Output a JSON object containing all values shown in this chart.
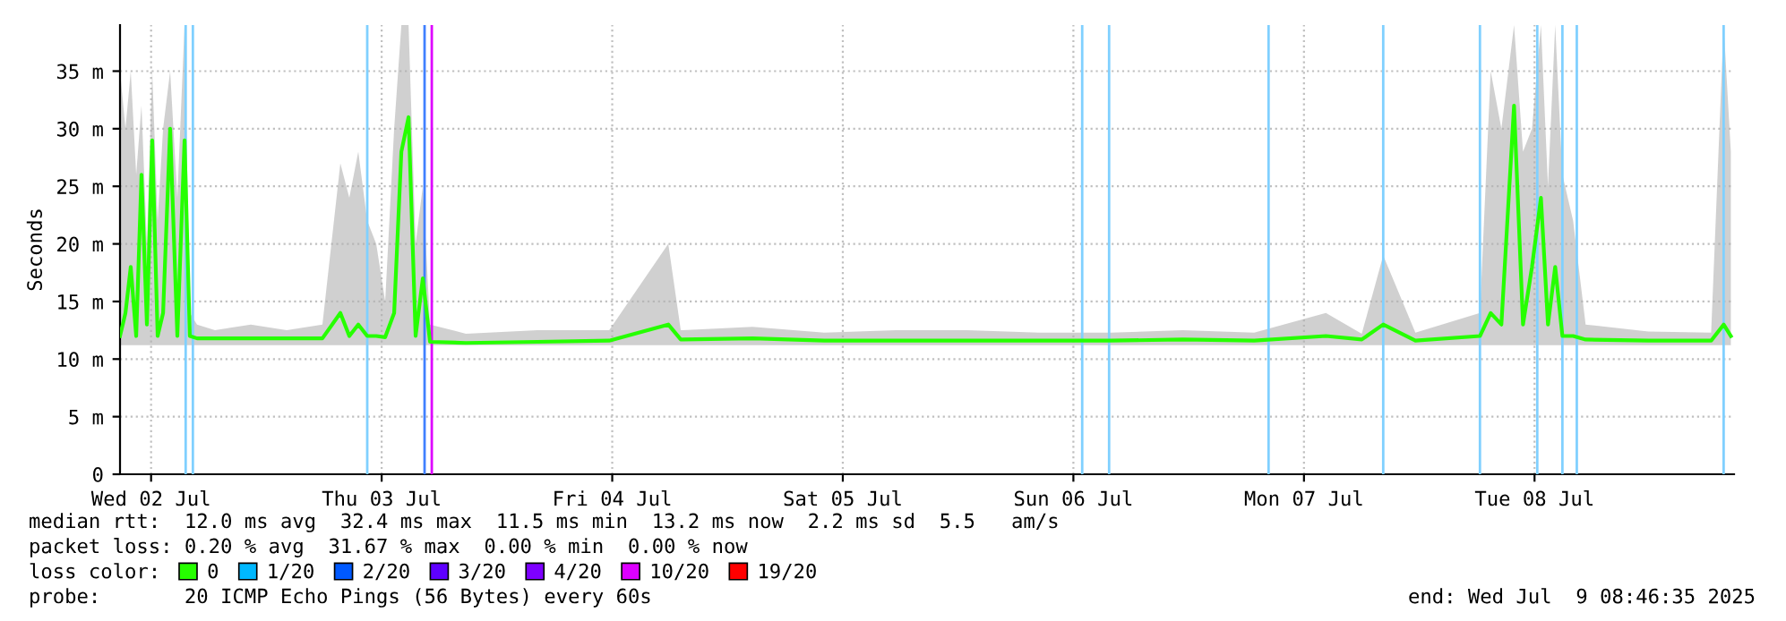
{
  "chart_data": {
    "type": "line",
    "ylabel": "Seconds",
    "legend_title": "loss color:",
    "legend": "bottom left",
    "grid": true,
    "marker": "none",
    "line_style": "solid",
    "x": [
      "2025-07-02T08:46",
      "2025-07-02T09:20",
      "2025-07-02T09:53",
      "2025-07-02T10:27",
      "2025-07-02T11:00",
      "2025-07-02T11:34",
      "2025-07-02T12:07",
      "2025-07-02T12:41",
      "2025-07-02T13:15",
      "2025-07-02T13:59",
      "2025-07-02T14:44",
      "2025-07-02T15:29",
      "2025-07-02T16:02",
      "2025-07-02T16:47",
      "2025-07-02T18:39",
      "2025-07-02T22:23",
      "2025-07-03T02:07",
      "2025-07-03T05:50",
      "2025-07-03T07:42",
      "2025-07-03T08:38",
      "2025-07-03T09:34",
      "2025-07-03T10:30",
      "2025-07-03T11:26",
      "2025-07-03T12:22",
      "2025-07-03T13:18",
      "2025-07-03T14:03",
      "2025-07-03T14:48",
      "2025-07-03T15:32",
      "2025-07-03T16:17",
      "2025-07-03T17:02",
      "2025-07-03T20:46",
      "2025-07-04T04:13",
      "2025-07-04T11:41",
      "2025-07-04T17:50",
      "2025-07-04T19:08",
      "2025-07-05T02:36",
      "2025-07-05T10:04",
      "2025-07-05T17:31",
      "2025-07-06T00:59",
      "2025-07-06T08:26",
      "2025-07-06T15:54",
      "2025-07-06T23:22",
      "2025-07-07T06:49",
      "2025-07-07T14:17",
      "2025-07-07T18:01",
      "2025-07-07T20:15",
      "2025-07-07T23:36",
      "2025-07-08T06:19",
      "2025-07-08T07:26",
      "2025-07-08T08:33",
      "2025-07-08T09:52",
      "2025-07-08T10:48",
      "2025-07-08T11:44",
      "2025-07-08T12:40",
      "2025-07-08T13:24",
      "2025-07-08T14:09",
      "2025-07-08T14:54",
      "2025-07-08T16:01",
      "2025-07-08T17:19",
      "2025-07-08T23:51",
      "2025-07-09T06:23",
      "2025-07-09T07:41",
      "2025-07-09T08:26"
    ],
    "series": [
      {
        "name": "0",
        "color": "#26ff00",
        "values": [
          12,
          14,
          18,
          12,
          26,
          13,
          29,
          12,
          14,
          30,
          12,
          29,
          12,
          11.8,
          11.8,
          11.8,
          11.8,
          11.8,
          14,
          12,
          13,
          12,
          12,
          11.9,
          14,
          28,
          31,
          12,
          17,
          11.5,
          11.4,
          11.5,
          11.6,
          13,
          11.7,
          11.8,
          11.6,
          11.6,
          11.6,
          11.6,
          11.6,
          11.7,
          11.6,
          12,
          11.7,
          13,
          11.6,
          12,
          14,
          13,
          32,
          13,
          18,
          24,
          13,
          18,
          12,
          12,
          11.7,
          11.6,
          11.6,
          13,
          12
        ],
        "lower": [
          11.2,
          11.2,
          11.2,
          11.2,
          11.2,
          11.2,
          11.2,
          11.2,
          11.2,
          11.2,
          11.2,
          11.2,
          11.2,
          11.2,
          11.2,
          11.2,
          11.2,
          11.2,
          11.2,
          11.2,
          11.2,
          11.2,
          11.2,
          11.2,
          11.2,
          11.2,
          11.2,
          11.2,
          11.2,
          11.2,
          11.2,
          11.2,
          11.2,
          11.2,
          11.2,
          11.2,
          11.2,
          11.2,
          11.2,
          11.2,
          11.2,
          11.2,
          11.2,
          11.2,
          11.2,
          11.2,
          11.2,
          11.2,
          11.2,
          11.2,
          11.2,
          11.2,
          11.2,
          11.2,
          11.2,
          11.2,
          11.2,
          11.2,
          11.2,
          11.2,
          11.2,
          11.2,
          11.2
        ],
        "upper": [
          35,
          30,
          35,
          26,
          32,
          20,
          35,
          22,
          30,
          35,
          24,
          39,
          14,
          13,
          12.5,
          13,
          12.5,
          13,
          27,
          24,
          28,
          22,
          20,
          15,
          30,
          39,
          39,
          20,
          25,
          13,
          12.2,
          12.5,
          12.5,
          20,
          12.5,
          12.8,
          12.3,
          12.5,
          12.5,
          12.3,
          12.3,
          12.5,
          12.3,
          14,
          12.2,
          19,
          12.3,
          14,
          35,
          30,
          39,
          28,
          30,
          39,
          25,
          39,
          26,
          22,
          13,
          12.4,
          12.3,
          39,
          28
        ]
      },
      {
        "name": "1/20",
        "color": "#00b8ff",
        "values": [
          null,
          null,
          null,
          null,
          null,
          null,
          null,
          null,
          null,
          null,
          null,
          null,
          null,
          null,
          null,
          null,
          null,
          null,
          null,
          null,
          null,
          null,
          null,
          null,
          null,
          null,
          null,
          null,
          null,
          null,
          null,
          null,
          null,
          null,
          null,
          null,
          null,
          null,
          null,
          null,
          null,
          null,
          null,
          null,
          null,
          null,
          null,
          null,
          null,
          null,
          null,
          null,
          null,
          null,
          null,
          null,
          null,
          null,
          null,
          null,
          null,
          null,
          null
        ]
      },
      {
        "name": "2/20",
        "color": "#0059ff",
        "values": [
          null,
          null,
          null,
          null,
          null,
          null,
          null,
          null,
          null,
          null,
          null,
          null,
          null,
          null,
          null,
          null,
          null,
          null,
          null,
          null,
          null,
          null,
          null,
          null,
          null,
          null,
          null,
          null,
          null,
          null,
          null,
          null,
          null,
          null,
          null,
          null,
          null,
          null,
          null,
          null,
          null,
          null,
          null,
          null,
          null,
          null,
          null,
          null,
          null,
          null,
          null,
          null,
          null,
          null,
          null,
          null,
          null,
          null,
          null,
          null,
          null,
          null,
          null
        ]
      },
      {
        "name": "3/20",
        "color": "#5e00ff",
        "values": [
          null,
          null,
          null,
          null,
          null,
          null,
          null,
          null,
          null,
          null,
          null,
          null,
          null,
          null,
          null,
          null,
          null,
          null,
          null,
          null,
          null,
          null,
          null,
          null,
          null,
          null,
          null,
          null,
          null,
          null,
          null,
          null,
          null,
          null,
          null,
          null,
          null,
          null,
          null,
          null,
          null,
          null,
          null,
          null,
          null,
          null,
          null,
          null,
          null,
          null,
          null,
          null,
          null,
          null,
          null,
          null,
          null,
          null,
          null,
          null,
          null,
          null,
          null
        ]
      },
      {
        "name": "4/20",
        "color": "#7e00ff",
        "values": [
          null,
          null,
          null,
          null,
          null,
          null,
          null,
          null,
          null,
          null,
          null,
          null,
          null,
          null,
          null,
          null,
          null,
          null,
          null,
          null,
          null,
          null,
          null,
          null,
          null,
          null,
          null,
          null,
          null,
          null,
          null,
          null,
          null,
          null,
          null,
          null,
          null,
          null,
          null,
          null,
          null,
          null,
          null,
          null,
          null,
          null,
          null,
          null,
          null,
          null,
          null,
          null,
          null,
          null,
          null,
          null,
          null,
          null,
          null,
          null,
          null,
          null,
          null
        ]
      },
      {
        "name": "10/20",
        "color": "#dd00ff",
        "values": [
          null,
          null,
          null,
          null,
          null,
          null,
          null,
          null,
          null,
          null,
          null,
          null,
          null,
          null,
          null,
          null,
          null,
          null,
          null,
          null,
          null,
          null,
          null,
          null,
          null,
          null,
          null,
          null,
          null,
          null,
          null,
          null,
          null,
          null,
          null,
          null,
          null,
          null,
          null,
          null,
          null,
          null,
          null,
          null,
          null,
          null,
          null,
          null,
          null,
          null,
          null,
          null,
          null,
          null,
          null,
          null,
          null,
          null,
          null,
          null,
          null,
          null,
          null
        ]
      },
      {
        "name": "19/20",
        "color": "#ff0000",
        "values": [
          null,
          null,
          null,
          null,
          null,
          null,
          null,
          null,
          null,
          null,
          null,
          null,
          null,
          null,
          null,
          null,
          null,
          null,
          null,
          null,
          null,
          null,
          null,
          null,
          null,
          null,
          null,
          null,
          null,
          null,
          null,
          null,
          null,
          null,
          null,
          null,
          null,
          null,
          null,
          null,
          null,
          null,
          null,
          null,
          null,
          null,
          null,
          null,
          null,
          null,
          null,
          null,
          null,
          null,
          null,
          null,
          null,
          null,
          null,
          null,
          null,
          null,
          null
        ]
      }
    ],
    "xlim": [
      "2025-07-02T08:46",
      "2025-07-09T08:46"
    ],
    "xticks": [
      {
        "value": "2025-07-02T12:00",
        "label": "Wed 02 Jul"
      },
      {
        "value": "2025-07-03T12:00",
        "label": "Thu 03 Jul"
      },
      {
        "value": "2025-07-04T12:00",
        "label": "Fri 04 Jul"
      },
      {
        "value": "2025-07-05T12:00",
        "label": "Sat 05 Jul"
      },
      {
        "value": "2025-07-06T12:00",
        "label": "Sun 06 Jul"
      },
      {
        "value": "2025-07-07T12:00",
        "label": "Mon 07 Jul"
      },
      {
        "value": "2025-07-08T12:00",
        "label": "Tue 08 Jul"
      }
    ],
    "ylim": [
      0,
      39
    ],
    "yticks": [
      0,
      {
        "value": 5,
        "label": "5 m"
      },
      {
        "value": 10,
        "label": "10 m"
      },
      {
        "value": 15,
        "label": "15 m"
      },
      {
        "value": 20,
        "label": "20 m"
      },
      {
        "value": 25,
        "label": "25 m"
      },
      {
        "value": 30,
        "label": "30 m"
      },
      {
        "value": 35,
        "label": "35 m"
      }
    ],
    "ref_lines": [
      {
        "axis": "x",
        "value": "2025-07-02T15:36",
        "color": "#80d0ff"
      },
      {
        "axis": "x",
        "value": "2025-07-02T16:21",
        "color": "#80d0ff"
      },
      {
        "axis": "x",
        "value": "2025-07-03T10:30",
        "color": "#80d0ff"
      },
      {
        "axis": "x",
        "value": "2025-07-03T16:28",
        "color": "#4080ff"
      },
      {
        "axis": "x",
        "value": "2025-07-03T17:13",
        "color": "#dd00ff"
      },
      {
        "axis": "x",
        "value": "2025-07-06T12:55",
        "color": "#80d0ff"
      },
      {
        "axis": "x",
        "value": "2025-07-06T15:43",
        "color": "#80d0ff"
      },
      {
        "axis": "x",
        "value": "2025-07-07T08:19",
        "color": "#80d0ff"
      },
      {
        "axis": "x",
        "value": "2025-07-07T20:15",
        "color": "#80d0ff"
      },
      {
        "axis": "x",
        "value": "2025-07-08T06:19",
        "color": "#80d0ff"
      },
      {
        "axis": "x",
        "value": "2025-07-08T12:17",
        "color": "#80d0ff"
      },
      {
        "axis": "x",
        "value": "2025-07-08T14:54",
        "color": "#80d0ff"
      },
      {
        "axis": "x",
        "value": "2025-07-08T16:24",
        "color": "#80d0ff"
      },
      {
        "axis": "x",
        "value": "2025-07-09T07:41",
        "color": "#80d0ff"
      }
    ],
    "annotations": [
      "median rtt:  12.0 ms avg  32.4 ms max  11.5 ms min  13.2 ms now  2.2 ms sd  5.5   am/s",
      "packet loss: 0.20 % avg  31.67 % max  0.00 % min  0.00 % now",
      "probe:       20 ICMP Echo Pings (56 Bytes) every 60s",
      "end: Wed Jul  9 08:46:35 2025"
    ]
  }
}
